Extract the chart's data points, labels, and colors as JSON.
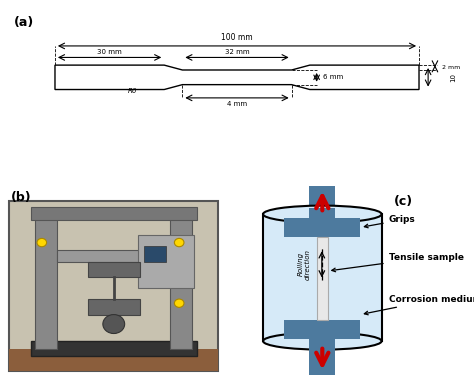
{
  "panel_a_label": "(a)",
  "panel_b_label": "(b)",
  "panel_c_label": "(c)",
  "dim_100mm": "100 mm",
  "dim_30mm": "30 mm",
  "dim_32mm": "32 mm",
  "dim_6mm": "6 mm",
  "dim_4mm": "4 mm",
  "dim_2mm": "2 mm",
  "dim_R6": "R6",
  "dim_10": "10",
  "label_grips": "Grips",
  "label_tensile": "Tensile sample",
  "label_corrosion": "Corrosion medium",
  "label_rolling": "Rolling\ndirection",
  "grip_color": "#4d7a9e",
  "cylinder_fill": "#d6eaf8",
  "cylinder_edge": "#000000",
  "sample_color": "#d3d3d3",
  "arrow_color": "#cc0000",
  "line_color": "#000000",
  "bg_color": "#ffffff"
}
